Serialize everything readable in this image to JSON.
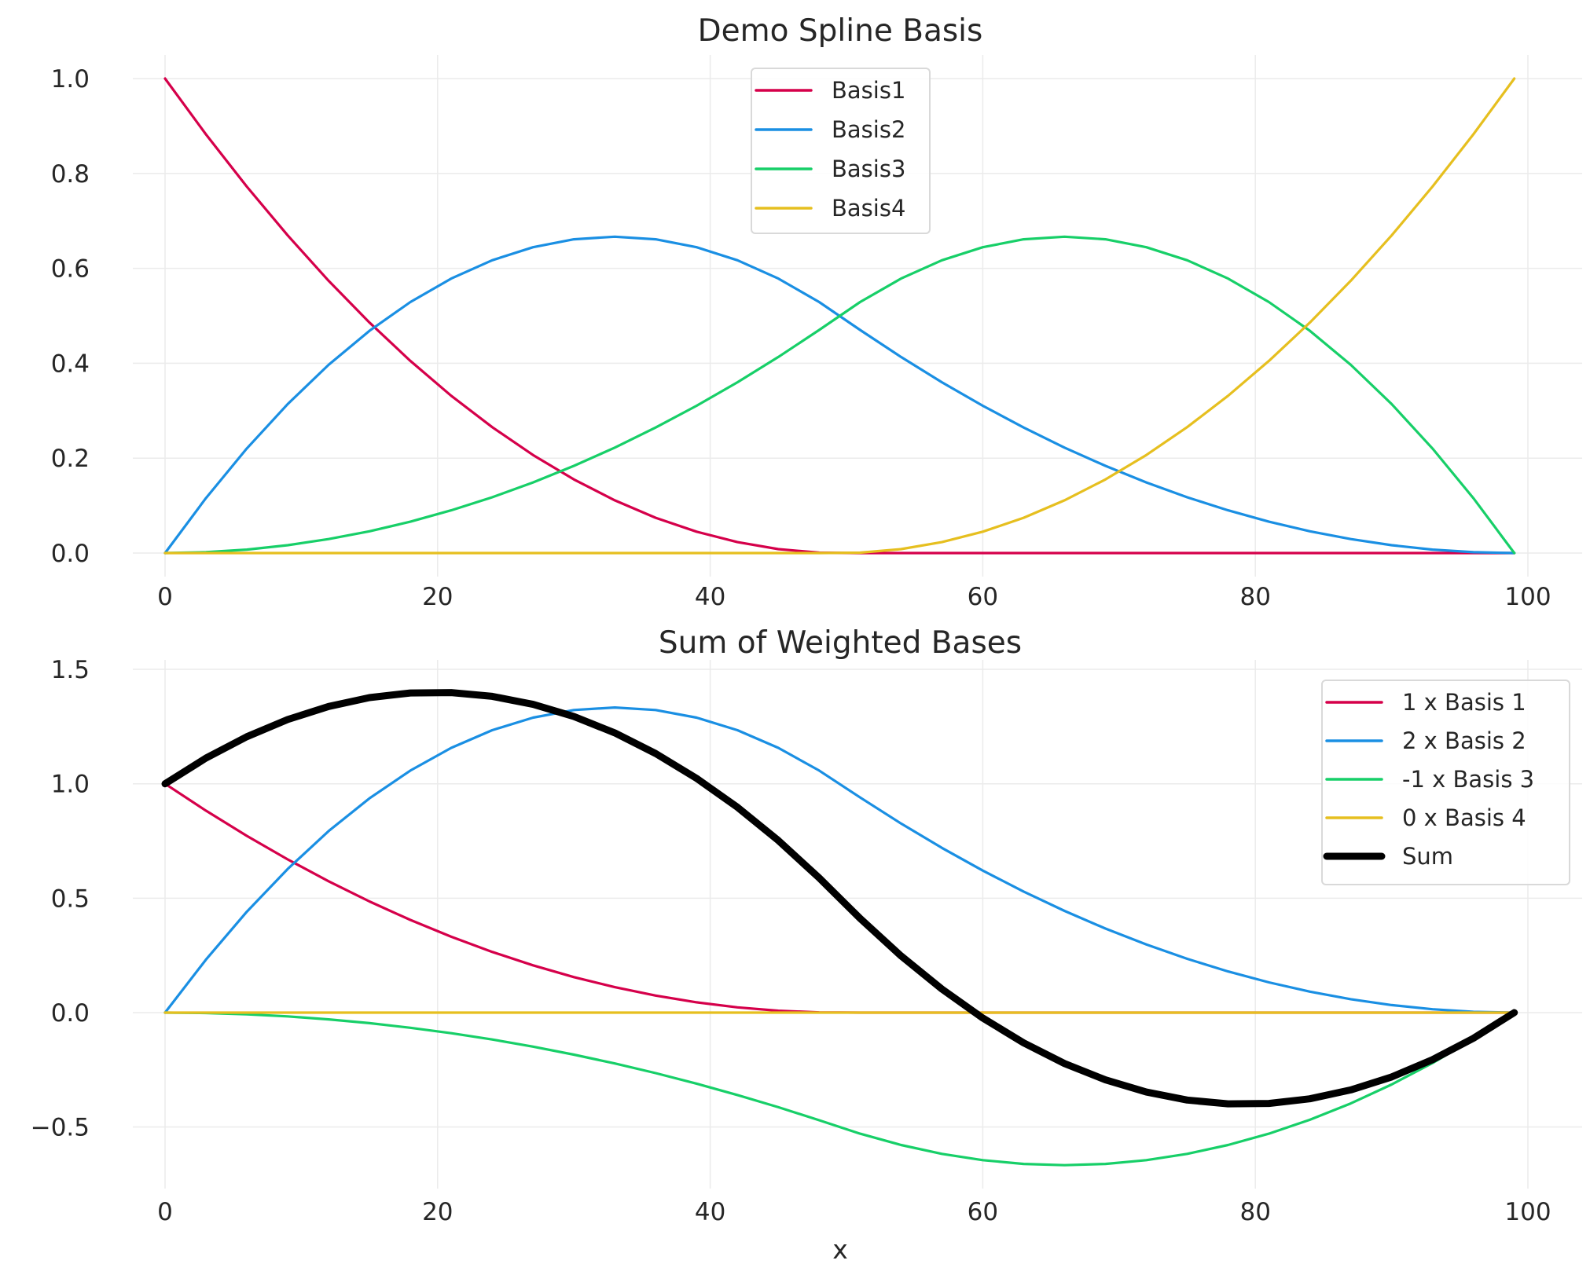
{
  "chart_data": [
    {
      "type": "line",
      "title": "Demo Spline Basis",
      "xlabel": "",
      "ylabel": "",
      "xlim": [
        -5,
        104
      ],
      "ylim": [
        -0.05,
        1.05
      ],
      "xticks": [
        "0",
        "20",
        "40",
        "60",
        "80",
        "100"
      ],
      "xtick_values": [
        0,
        20,
        40,
        60,
        80,
        100
      ],
      "yticks": [
        "0.0",
        "0.2",
        "0.4",
        "0.6",
        "0.8",
        "1.0"
      ],
      "ytick_values": [
        0,
        0.2,
        0.4,
        0.6,
        0.8,
        1.0
      ],
      "grid": true,
      "legend_position": "top-center",
      "x": [
        0,
        3,
        6,
        9,
        12,
        15,
        18,
        21,
        24,
        27,
        30,
        33,
        36,
        39,
        42,
        45,
        48,
        51,
        54,
        57,
        60,
        63,
        66,
        69,
        72,
        75,
        78,
        81,
        84,
        87,
        90,
        93,
        96,
        99
      ],
      "series": [
        {
          "name": "Basis1",
          "color": "#d5004a",
          "values": [
            1,
            0.8825,
            0.7723,
            0.6694,
            0.5739,
            0.4858,
            0.405,
            0.3315,
            0.2654,
            0.2066,
            0.1552,
            0.1111,
            0.0744,
            0.045,
            0.023,
            0.0083,
            0.0009,
            0,
            0,
            0,
            0,
            0,
            0,
            0,
            0,
            0,
            0,
            0,
            0,
            0,
            0,
            0,
            0,
            0
          ]
        },
        {
          "name": "Basis2",
          "color": "#1a8fe3",
          "values": [
            0,
            0.1157,
            0.2204,
            0.314,
            0.3967,
            0.4683,
            0.5289,
            0.5785,
            0.6171,
            0.6446,
            0.6612,
            0.6667,
            0.6612,
            0.6446,
            0.6171,
            0.5785,
            0.5289,
            0.4702,
            0.4132,
            0.36,
            0.3104,
            0.2645,
            0.2222,
            0.1837,
            0.1488,
            0.1175,
            0.09,
            0.0661,
            0.0459,
            0.0294,
            0.0165,
            0.0073,
            0.0018,
            0
          ]
        },
        {
          "name": "Basis3",
          "color": "#17cf68",
          "values": [
            0,
            0.0018,
            0.0073,
            0.0165,
            0.0294,
            0.0459,
            0.0661,
            0.09,
            0.1175,
            0.1488,
            0.1837,
            0.2222,
            0.2645,
            0.3104,
            0.36,
            0.4132,
            0.4702,
            0.5289,
            0.5785,
            0.6171,
            0.6446,
            0.6612,
            0.6667,
            0.6612,
            0.6446,
            0.6171,
            0.5785,
            0.5289,
            0.4683,
            0.3967,
            0.314,
            0.2204,
            0.1157,
            0
          ]
        },
        {
          "name": "Basis4",
          "color": "#e6bf1f",
          "values": [
            0,
            0,
            0,
            0,
            0,
            0,
            0,
            0,
            0,
            0,
            0,
            0,
            0,
            0,
            0,
            0,
            0,
            0.0009,
            0.0083,
            0.023,
            0.045,
            0.0744,
            0.1111,
            0.1552,
            0.2066,
            0.2654,
            0.3315,
            0.405,
            0.4858,
            0.5739,
            0.6694,
            0.7723,
            0.8825,
            1
          ]
        }
      ]
    },
    {
      "type": "line",
      "title": "Sum of Weighted Bases",
      "xlabel": "x",
      "ylabel": "",
      "xlim": [
        -5,
        104
      ],
      "ylim": [
        -0.77,
        1.55
      ],
      "xticks": [
        "0",
        "20",
        "40",
        "60",
        "80",
        "100"
      ],
      "xtick_values": [
        0,
        20,
        40,
        60,
        80,
        100
      ],
      "yticks": [
        "−0.5",
        "0.0",
        "0.5",
        "1.0",
        "1.5"
      ],
      "ytick_values": [
        -0.5,
        0,
        0.5,
        1.0,
        1.5
      ],
      "grid": true,
      "legend_position": "top-right",
      "weights": [
        1,
        2,
        -1,
        0
      ],
      "series": [
        {
          "name": "1 x Basis 1",
          "color": "#d5004a"
        },
        {
          "name": "2 x Basis 2",
          "color": "#1a8fe3"
        },
        {
          "name": "-1 x Basis 3",
          "color": "#17cf68"
        },
        {
          "name": "0 x Basis 4",
          "color": "#e6bf1f"
        },
        {
          "name": "Sum",
          "color": "#000000"
        }
      ]
    }
  ]
}
